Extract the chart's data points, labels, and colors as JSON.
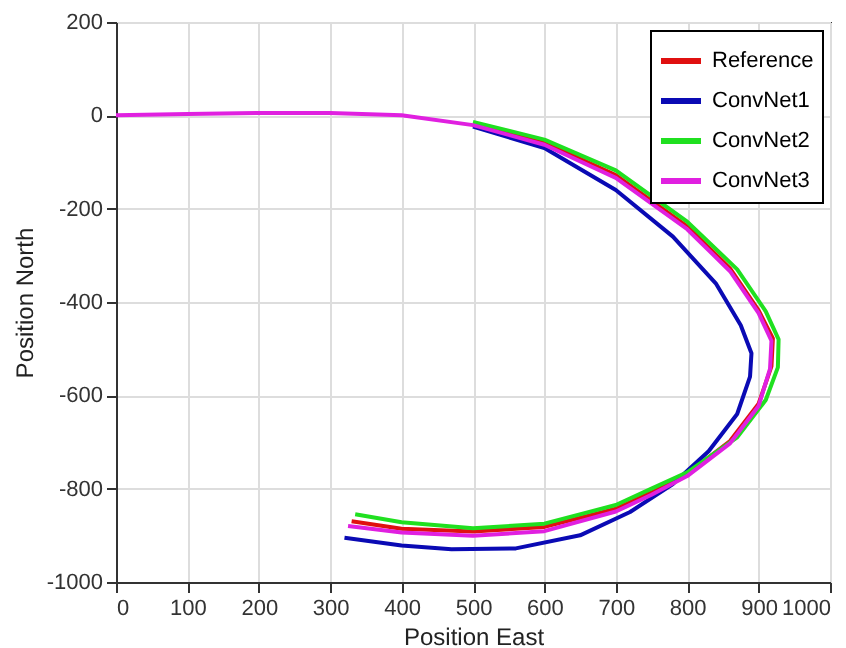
{
  "chart_data": {
    "type": "line",
    "xlabel": "Position East",
    "ylabel": "Position North",
    "xlim": [
      0,
      1000
    ],
    "ylim": [
      -1000,
      200
    ],
    "xticks": [
      0,
      100,
      200,
      300,
      400,
      500,
      600,
      700,
      800,
      900,
      1000
    ],
    "yticks": [
      -1000,
      -800,
      -600,
      -400,
      -200,
      0,
      200
    ],
    "grid": true,
    "legend": "top right",
    "line_style": "solid",
    "marker": "none",
    "series": [
      {
        "name": "Reference",
        "color": "#e01010",
        "x": [
          500,
          600,
          700,
          800,
          860,
          900,
          920,
          918,
          900,
          860,
          800,
          750,
          700,
          600,
          500,
          400,
          330
        ],
        "values": [
          -18,
          -58,
          -128,
          -238,
          -328,
          -418,
          -478,
          -538,
          -618,
          -698,
          -768,
          -808,
          -843,
          -882,
          -892,
          -886,
          -870
        ]
      },
      {
        "name": "ConvNet1",
        "color": "#0a0ab4",
        "x": [
          500,
          600,
          700,
          780,
          840,
          875,
          890,
          888,
          870,
          830,
          780,
          720,
          650,
          560,
          470,
          400,
          320
        ],
        "values": [
          -24,
          -70,
          -160,
          -260,
          -360,
          -450,
          -510,
          -560,
          -640,
          -720,
          -790,
          -850,
          -900,
          -928,
          -930,
          -922,
          -905
        ]
      },
      {
        "name": "ConvNet2",
        "color": "#20e020",
        "x": [
          500,
          600,
          700,
          800,
          870,
          910,
          928,
          927,
          910,
          870,
          800,
          750,
          700,
          600,
          500,
          400,
          335
        ],
        "values": [
          -14,
          -52,
          -118,
          -228,
          -330,
          -420,
          -480,
          -540,
          -610,
          -690,
          -765,
          -800,
          -835,
          -875,
          -885,
          -872,
          -855
        ]
      },
      {
        "name": "ConvNet3",
        "color": "#e020e0",
        "x": [
          0,
          100,
          200,
          300,
          400,
          500,
          600,
          700,
          800,
          860,
          900,
          918,
          916,
          900,
          860,
          800,
          750,
          700,
          600,
          500,
          400,
          325
        ],
        "values": [
          0,
          3,
          5,
          5,
          0,
          -21,
          -63,
          -134,
          -244,
          -334,
          -424,
          -483,
          -543,
          -623,
          -703,
          -773,
          -813,
          -849,
          -891,
          -901,
          -894,
          -880
        ]
      }
    ]
  }
}
